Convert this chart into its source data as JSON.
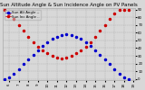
{
  "title": "Sun Altitude Angle & Sun Incidence Angle on PV Panels",
  "bg_color": "#d8d8d8",
  "grid_color": "#aaaaaa",
  "text_color": "#000000",
  "series": [
    {
      "label": "Sun Altitude Angle",
      "color": "#0000cc",
      "x": [
        5.5,
        6.0,
        6.5,
        7.0,
        7.5,
        8.0,
        8.5,
        9.0,
        9.5,
        10.0,
        10.5,
        11.0,
        11.5,
        12.0,
        12.5,
        13.0,
        13.5,
        14.0,
        14.5,
        15.0,
        15.5,
        16.0,
        16.5,
        17.0,
        17.5,
        18.0,
        18.5
      ],
      "y": [
        0,
        2,
        7,
        13,
        19,
        25,
        31,
        37,
        43,
        48,
        52,
        55,
        57,
        58,
        57,
        55,
        52,
        48,
        43,
        37,
        31,
        25,
        19,
        13,
        7,
        2,
        0
      ]
    },
    {
      "label": "Sun Incidence Angle",
      "color": "#cc0000",
      "x": [
        5.5,
        6.0,
        6.5,
        7.0,
        7.5,
        8.0,
        8.5,
        9.0,
        9.5,
        10.0,
        10.5,
        11.0,
        11.5,
        12.0,
        12.5,
        13.0,
        13.5,
        14.0,
        14.5,
        15.0,
        15.5,
        16.0,
        16.5,
        17.0,
        17.5,
        18.0,
        18.5
      ],
      "y": [
        90,
        85,
        78,
        70,
        63,
        55,
        48,
        42,
        37,
        33,
        30,
        28,
        27,
        28,
        30,
        33,
        37,
        42,
        48,
        55,
        63,
        70,
        78,
        85,
        90,
        90,
        90
      ]
    }
  ],
  "xlim": [
    5.3,
    19.2
  ],
  "ylim": [
    -2,
    92
  ],
  "yticks": [
    0,
    10,
    20,
    30,
    40,
    50,
    60,
    70,
    80,
    90
  ],
  "xticks": [
    6,
    7,
    8,
    9,
    10,
    11,
    12,
    13,
    14,
    15,
    16,
    17,
    18,
    19
  ],
  "xticklabels": [
    "6",
    "7",
    "8",
    "9",
    "10",
    "11",
    "12",
    "13",
    "14",
    "15",
    "16",
    "17",
    "18",
    "19"
  ],
  "legend_entries": [
    {
      "label": "Sun Alt Angle --",
      "color": "#0000cc"
    },
    {
      "label": "Sun Inc Angle ..",
      "color": "#cc0000"
    }
  ],
  "title_fontsize": 4.0,
  "tick_fontsize": 2.8,
  "legend_fontsize": 2.8,
  "marker_size": 1.5
}
